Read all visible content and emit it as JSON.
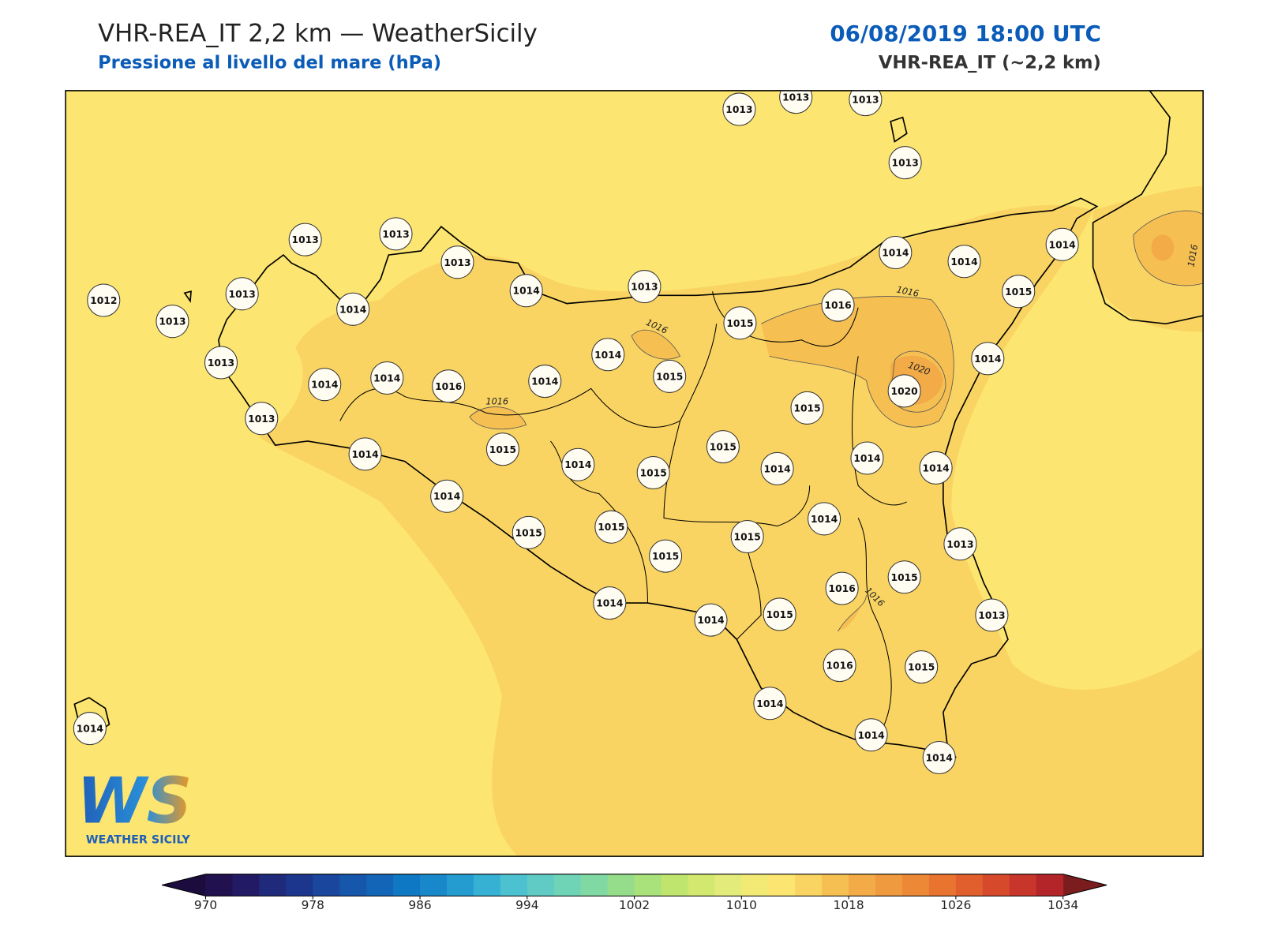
{
  "header": {
    "title": "VHR-REA_IT 2,2 km — WeatherSicily",
    "subtitle": "Pressione al livello del mare (hPa)",
    "datetime": "06/08/2019 18:00 UTC",
    "model": "VHR-REA_IT (~2,2 km)"
  },
  "logo": {
    "mark": "WS",
    "text": "WEATHER SICILY"
  },
  "stations": {
    "values": [
      1013,
      1013,
      1013,
      1013,
      1013,
      1013,
      1013,
      1012,
      1013,
      1013,
      1014,
      1014,
      1013,
      1014,
      1014,
      1014,
      1015,
      1016,
      1015,
      1014,
      1015,
      1014,
      1013,
      1014,
      1014,
      1016,
      1014,
      1020,
      1015,
      1013,
      1014,
      1015,
      1015,
      1014,
      1015,
      1014,
      1014,
      1014,
      1014,
      1014,
      1015,
      1015,
      1015,
      1015,
      1013,
      1016,
      1015,
      1013,
      1014,
      1014,
      1015,
      1016,
      1015,
      1014,
      1014,
      1014,
      1014
    ]
  },
  "contour_labels": [
    "1016",
    "1016",
    "1016",
    "1016",
    "1016",
    "1020"
  ],
  "colorbar": {
    "lim": [
      970,
      1034
    ],
    "ticks": [
      970,
      978,
      986,
      994,
      1002,
      1010,
      1018,
      1026,
      1034
    ],
    "colors": [
      "#21114f",
      "#221a64",
      "#1f2a7a",
      "#1c368e",
      "#1b469e",
      "#1656ab",
      "#1365b8",
      "#0f78c4",
      "#1988ca",
      "#249ccf",
      "#36b1d3",
      "#4cc1cf",
      "#5fcbc4",
      "#6fd4b6",
      "#80d9a3",
      "#95dd8a",
      "#a9e17a",
      "#bfe56f",
      "#d3e86f",
      "#e3eb7a",
      "#f2ea75",
      "#fce570",
      "#fad462",
      "#f5bf52",
      "#f2ab47",
      "#ef9a3e",
      "#ec8836",
      "#e8742f",
      "#e15f2c",
      "#d64a2b",
      "#c8352b",
      "#b4252a"
    ],
    "under": "#1c0c3e",
    "over": "#7b1c1f"
  }
}
